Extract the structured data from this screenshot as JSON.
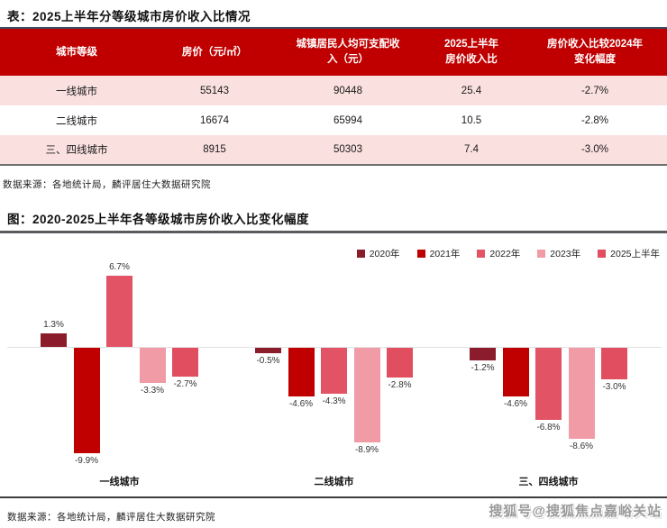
{
  "page": {
    "table_title": "表：2025上半年分等级城市房价收入比情况",
    "figure_title": "图：2020-2025上半年各等级城市房价收入比变化幅度",
    "table_source": "数据来源：各地统计局，麟评居住大数据研究院",
    "chart_source": "数据来源：各地统计局，麟评居住大数据研究院",
    "watermark": "搜狐号@搜狐焦点嘉峪关站"
  },
  "colors": {
    "header_bg": "#C00000",
    "row_pink": "#FAE1DF",
    "rule_navy": "#3D4C5E",
    "rule_gray": "#5A5B5E",
    "zero_line": "#E2E2E2"
  },
  "table": {
    "headers": [
      "城市等级",
      "房价（元/㎡）",
      "城镇居民人均可支配收\n入（元）",
      "2025上半年\n房价收入比",
      "房价收入比较2024年\n变化幅度"
    ],
    "rows": [
      [
        "一线城市",
        "55143",
        "90448",
        "25.4",
        "-2.7%"
      ],
      [
        "二线城市",
        "16674",
        "65994",
        "10.5",
        "-2.8%"
      ],
      [
        "三、四线城市",
        "8915",
        "50303",
        "7.4",
        "-3.0%"
      ]
    ]
  },
  "chart_data": {
    "type": "bar",
    "title": "图：2020-2025上半年各等级城市房价收入比变化幅度",
    "categories": [
      "一线城市",
      "二线城市",
      "三、四线城市"
    ],
    "series": [
      {
        "name": "2020年",
        "color": "#8A1C2B",
        "values": [
          1.3,
          -0.5,
          -1.2
        ]
      },
      {
        "name": "2021年",
        "color": "#C00000",
        "values": [
          -9.9,
          -4.6,
          -4.6
        ]
      },
      {
        "name": "2022年",
        "color": "#E25365",
        "values": [
          6.7,
          -4.3,
          -6.8
        ]
      },
      {
        "name": "2023年",
        "color": "#F09BA5",
        "values": [
          -3.3,
          -8.9,
          -8.6
        ]
      },
      {
        "name": "2025上半年",
        "color": "#E04E60",
        "values": [
          -2.7,
          -2.8,
          -3.0
        ]
      }
    ],
    "unit": "%",
    "ylim": [
      -11,
      8.5
    ],
    "grid": false,
    "legend_position": "top-right",
    "value_labels": true,
    "zero_baseline": true
  }
}
